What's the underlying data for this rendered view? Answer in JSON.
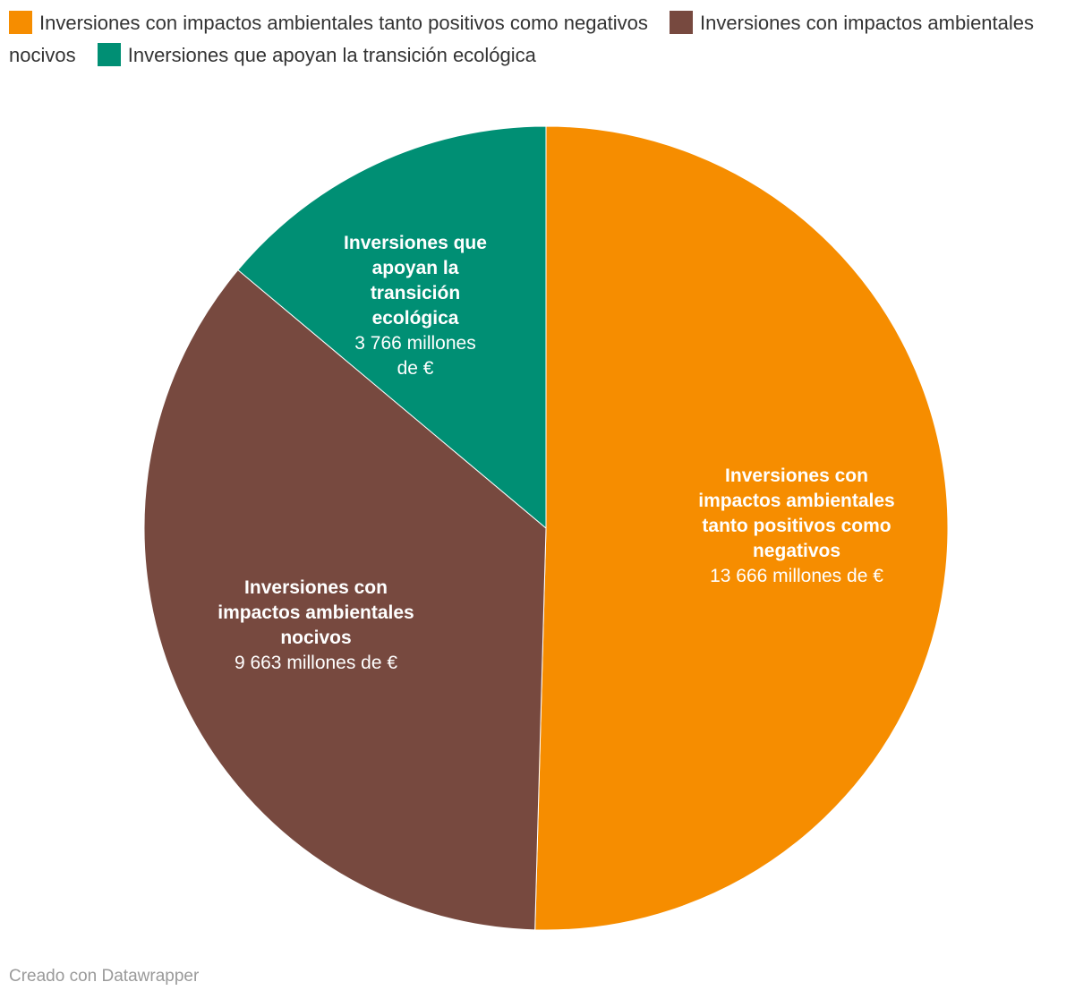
{
  "chart_data": {
    "type": "pie",
    "slices": [
      {
        "label": "Inversiones con impactos ambientales tanto positivos como negativos",
        "label_lines": [
          "Inversiones con",
          "impactos ambientales",
          "tanto positivos como",
          "negativos"
        ],
        "value": 13666,
        "value_text_lines": [
          "13 666 millones de €"
        ],
        "color": "#f68d00"
      },
      {
        "label": "Inversiones con impactos ambientales nocivos",
        "label_lines": [
          "Inversiones con",
          "impactos ambientales",
          "nocivos"
        ],
        "value": 9663,
        "value_text_lines": [
          "9 663 millones de €"
        ],
        "color": "#77493f"
      },
      {
        "label": "Inversiones que apoyan la transición ecológica",
        "label_lines": [
          "Inversiones que",
          "apoyan la",
          "transición",
          "ecológica"
        ],
        "value": 3766,
        "value_text_lines": [
          "3 766 millones",
          "de €"
        ],
        "color": "#008f74"
      }
    ],
    "legend_position": "top-left"
  },
  "credit": "Creado con Datawrapper"
}
